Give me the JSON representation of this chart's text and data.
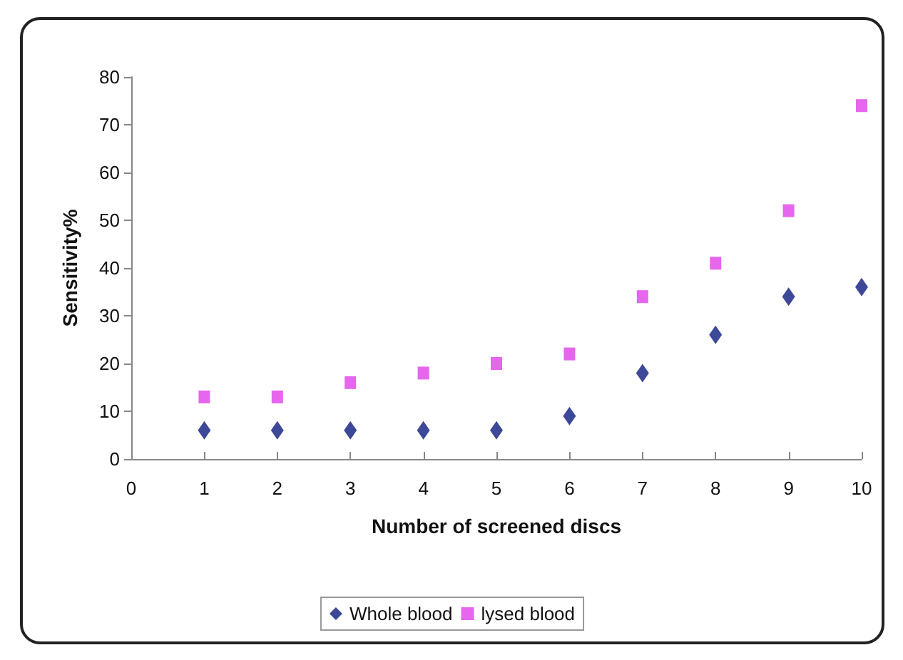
{
  "chart_data": {
    "type": "scatter",
    "xlabel": "Number of screened discs",
    "ylabel": "Sensitivity%",
    "x": [
      1,
      2,
      3,
      4,
      5,
      6,
      7,
      8,
      9,
      10
    ],
    "series": [
      {
        "name": "Whole blood",
        "color": "#0d1a80",
        "marker": "diamond",
        "values": [
          6,
          6,
          6,
          6,
          6,
          9,
          18,
          26,
          34,
          36
        ]
      },
      {
        "name": "lysed blood",
        "color": "#e040e8",
        "marker": "square",
        "values": [
          13,
          13,
          16,
          18,
          20,
          22,
          34,
          41,
          52,
          74
        ]
      }
    ],
    "xlim": [
      0,
      10
    ],
    "xticks": [
      0,
      1,
      2,
      3,
      4,
      5,
      6,
      7,
      8,
      9,
      10
    ],
    "ylim": [
      0,
      80
    ],
    "yticks": [
      0,
      10,
      20,
      30,
      40,
      50,
      60,
      70,
      80
    ],
    "grid": false,
    "legend": "bottom"
  }
}
